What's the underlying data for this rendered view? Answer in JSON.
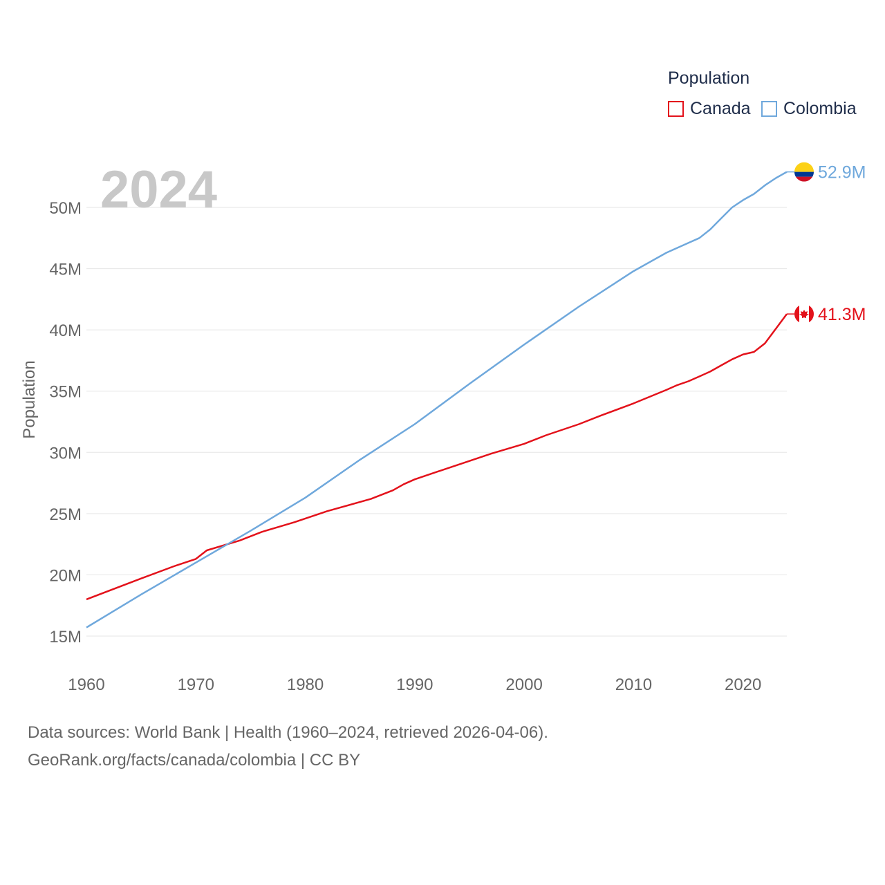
{
  "legend": {
    "title": "Population",
    "items": [
      {
        "label": "Canada",
        "color": "#e3121b"
      },
      {
        "label": "Colombia",
        "color": "#6fa8dc"
      }
    ]
  },
  "year_watermark": "2024",
  "end_labels": {
    "canada": "41.3M",
    "colombia": "52.9M"
  },
  "footer": {
    "line1": "Data sources: World Bank | Health (1960–2024, retrieved 2026-04-06).",
    "line2": "GeoRank.org/facts/canada/colombia | CC BY"
  },
  "chart_data": {
    "type": "line",
    "title": "Population",
    "xlabel": "",
    "ylabel": "Population",
    "xlim": [
      1960,
      2024
    ],
    "ylim": [
      13,
      54
    ],
    "x_ticks": [
      1960,
      1970,
      1980,
      1990,
      2000,
      2010,
      2020
    ],
    "x_tick_labels": [
      "1960",
      "1970",
      "1980",
      "1990",
      "2000",
      "2010",
      "2020"
    ],
    "y_ticks": [
      15,
      20,
      25,
      30,
      35,
      40,
      45,
      50
    ],
    "y_tick_labels": [
      "15M",
      "20M",
      "25M",
      "30M",
      "35M",
      "40M",
      "45M",
      "50M"
    ],
    "grid": true,
    "legend_position": "top-right",
    "series": [
      {
        "name": "Canada",
        "color": "#e3121b",
        "x": [
          1960,
          1965,
          1968,
          1970,
          1971,
          1974,
          1976,
          1979,
          1982,
          1986,
          1988,
          1989,
          1990,
          1992,
          1995,
          1997,
          2000,
          2002,
          2005,
          2007,
          2010,
          2013,
          2014,
          2015,
          2016,
          2017,
          2018,
          2019,
          2020,
          2021,
          2022,
          2023,
          2024
        ],
        "values": [
          18.0,
          19.7,
          20.7,
          21.3,
          22.0,
          22.8,
          23.5,
          24.3,
          25.2,
          26.2,
          26.9,
          27.4,
          27.8,
          28.4,
          29.3,
          29.9,
          30.7,
          31.4,
          32.3,
          33.0,
          34.0,
          35.1,
          35.5,
          35.8,
          36.2,
          36.6,
          37.1,
          37.6,
          38.0,
          38.2,
          38.9,
          40.1,
          41.3
        ]
      },
      {
        "name": "Colombia",
        "color": "#6fa8dc",
        "x": [
          1960,
          1965,
          1970,
          1975,
          1980,
          1985,
          1990,
          1995,
          2000,
          2005,
          2010,
          2013,
          2015,
          2016,
          2017,
          2018,
          2019,
          2020,
          2021,
          2022,
          2023,
          2024
        ],
        "values": [
          15.7,
          18.4,
          21.0,
          23.6,
          26.3,
          29.4,
          32.3,
          35.6,
          38.8,
          41.9,
          44.8,
          46.3,
          47.1,
          47.5,
          48.2,
          49.1,
          50.0,
          50.6,
          51.1,
          51.8,
          52.4,
          52.9
        ]
      }
    ]
  }
}
